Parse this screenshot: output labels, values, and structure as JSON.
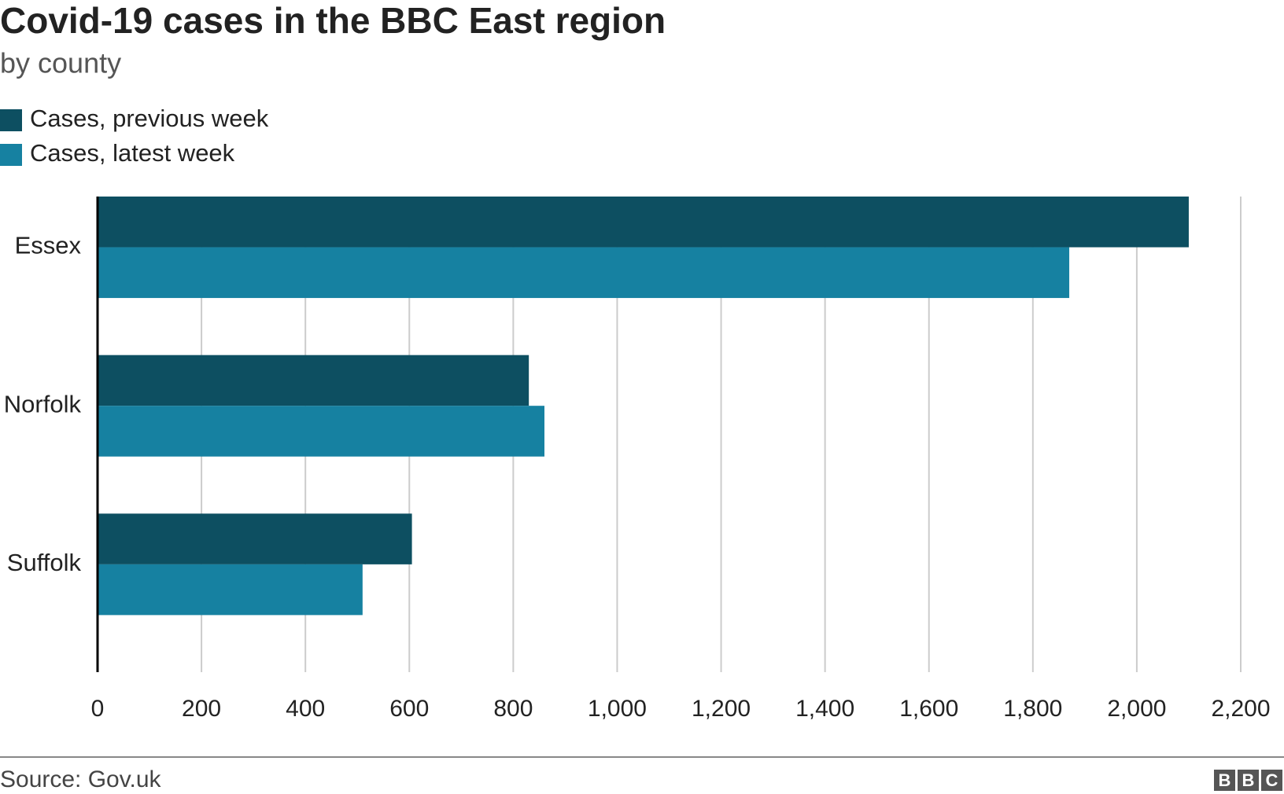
{
  "chart_data": {
    "type": "hbar",
    "title": "Covid-19 cases in the BBC East region",
    "subtitle": "by county",
    "categories": [
      "Essex",
      "Norfolk",
      "Suffolk"
    ],
    "series": [
      {
        "name": "Cases, previous week",
        "color": "#0d4f61",
        "values": [
          2100,
          830,
          605
        ]
      },
      {
        "name": "Cases, latest week",
        "color": "#1681a1",
        "values": [
          1870,
          860,
          510
        ]
      }
    ],
    "xlim": [
      0,
      2200
    ],
    "xticks": [
      0,
      200,
      400,
      600,
      800,
      {
        "value": 1000,
        "label": "1,000"
      },
      {
        "value": 1200,
        "label": "1,200"
      },
      {
        "value": 1400,
        "label": "1,400"
      },
      {
        "value": 1600,
        "label": "1,600"
      },
      {
        "value": 1800,
        "label": "1,800"
      },
      {
        "value": 2000,
        "label": "2,000"
      },
      {
        "value": 2200,
        "label": "2,200"
      }
    ],
    "grid": true,
    "source": "Source: Gov.uk",
    "logo": [
      "B",
      "B",
      "C"
    ]
  }
}
